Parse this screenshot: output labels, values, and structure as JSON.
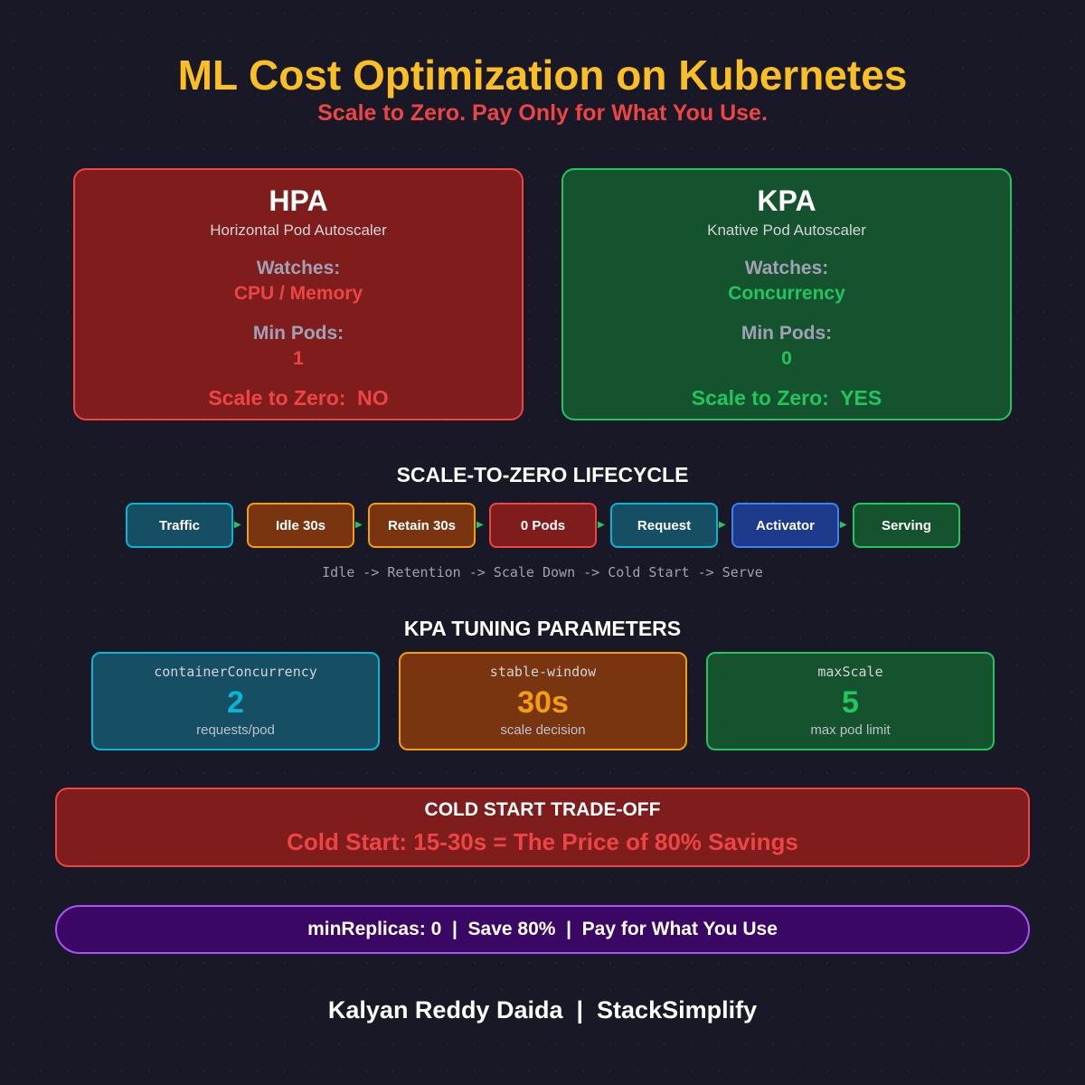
{
  "header": {
    "title": "ML Cost Optimization on Kubernetes",
    "subtitle": "Scale to Zero. Pay Only for What You Use."
  },
  "hpa": {
    "name": "HPA",
    "full": "Horizontal Pod Autoscaler",
    "watches_label": "Watches:",
    "watches": "CPU / Memory",
    "min_label": "Min Pods:",
    "min": "1",
    "stz": "Scale to Zero:  NO"
  },
  "kpa": {
    "name": "KPA",
    "full": "Knative Pod Autoscaler",
    "watches_label": "Watches:",
    "watches": "Concurrency",
    "min_label": "Min Pods:",
    "min": "0",
    "stz": "Scale to Zero:  YES"
  },
  "lifecycle": {
    "title": "SCALE-TO-ZERO LIFECYCLE",
    "steps": [
      "Traffic",
      "Idle 30s",
      "Retain 30s",
      "0 Pods",
      "Request",
      "Activator",
      "Serving"
    ],
    "caption": "Idle -> Retention -> Scale Down -> Cold Start -> Serve"
  },
  "params": {
    "title": "KPA TUNING PARAMETERS",
    "items": [
      {
        "key": "containerConcurrency",
        "value": "2",
        "unit": "requests/pod"
      },
      {
        "key": "stable-window",
        "value": "30s",
        "unit": "scale decision"
      },
      {
        "key": "maxScale",
        "value": "5",
        "unit": "max pod limit"
      }
    ]
  },
  "coldstart": {
    "title": "COLD START TRADE-OFF",
    "text": "Cold Start: 15-30s = The Price of 80% Savings"
  },
  "banner": "minReplicas: 0  |  Save 80%  |  Pay for What You Use",
  "footer": "Kalyan Reddy Daida  |  StackSimplify",
  "colors": {
    "red": "#ef4444",
    "green": "#22c55e",
    "cyan": "#06b6d4",
    "orange": "#f59e0b",
    "blue": "#3b82f6",
    "purple": "#a855f7",
    "yellow": "#fbbf24"
  }
}
